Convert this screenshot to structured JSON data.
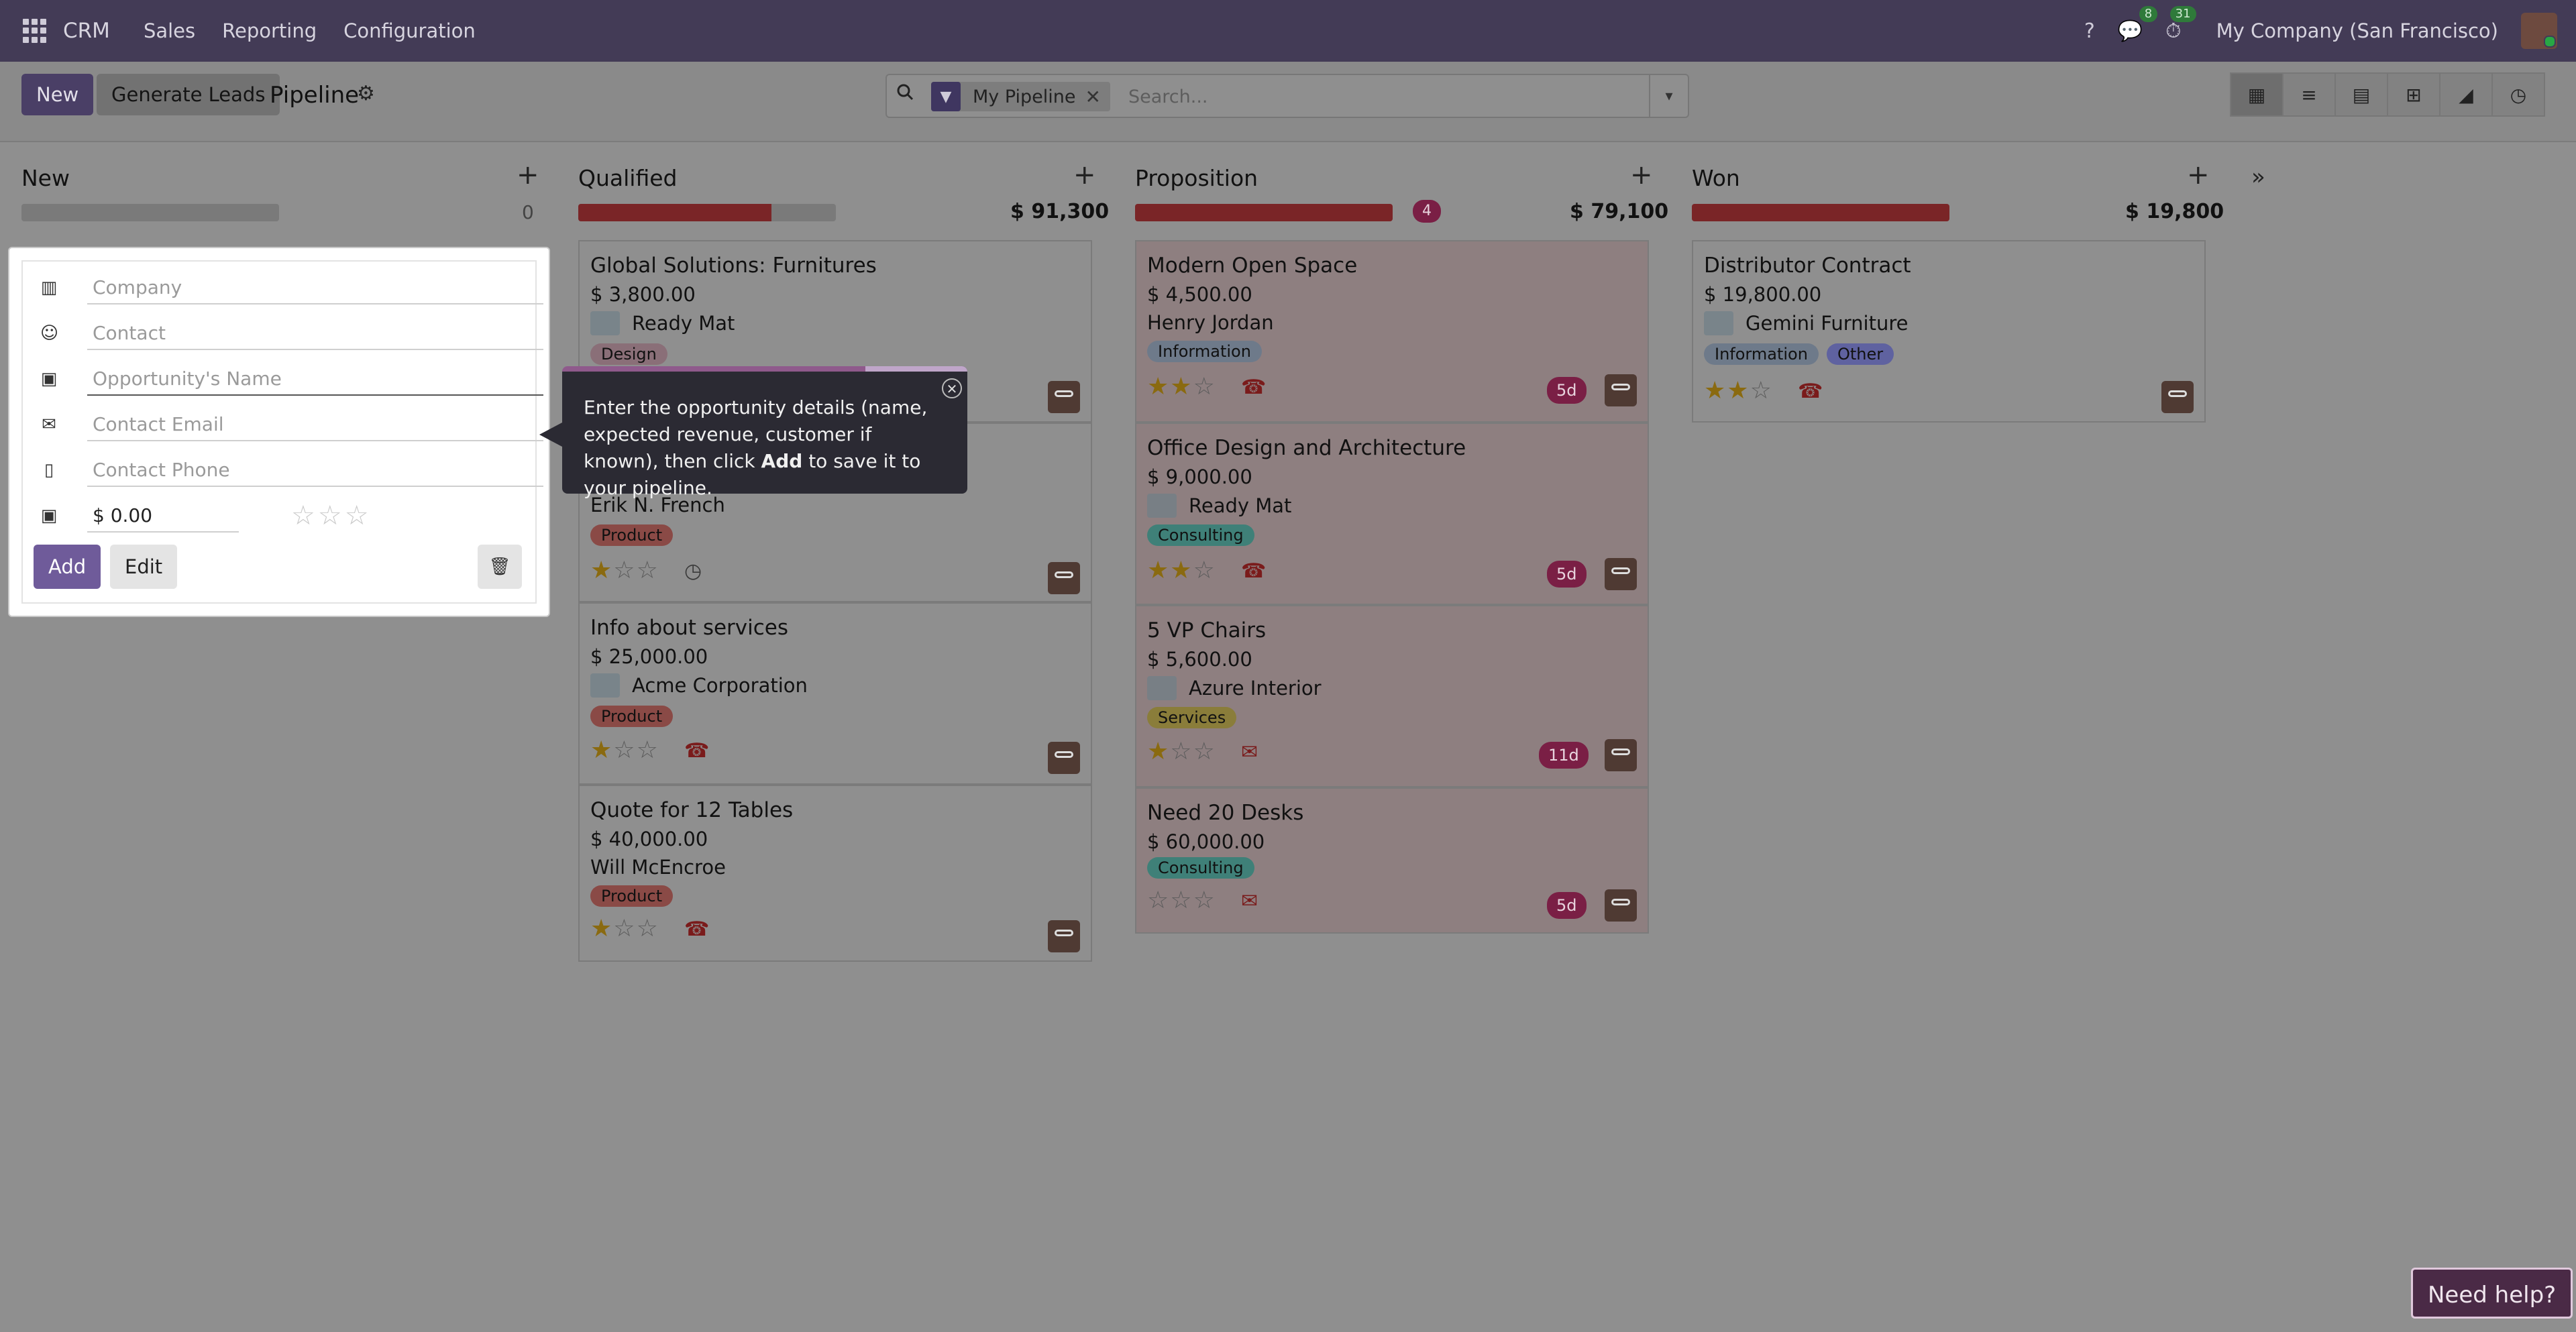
{
  "navbar": {
    "brand": "CRM",
    "menu": [
      "Sales",
      "Reporting",
      "Configuration"
    ],
    "messages_count": "8",
    "activities_count": "31",
    "company": "My Company (San Francisco)"
  },
  "control": {
    "new_label": "New",
    "generate_label": "Generate Leads",
    "breadcrumb": "Pipeline",
    "facet_label": "My Pipeline",
    "search_placeholder": "Search..."
  },
  "columns": [
    {
      "title": "New",
      "total": "0",
      "progress": 0
    },
    {
      "title": "Qualified",
      "total": "$ 91,300",
      "progress": 0.75
    },
    {
      "title": "Proposition",
      "total": "$ 79,100",
      "badge": "4",
      "progress": 1.0
    },
    {
      "title": "Won",
      "total": "$ 19,800",
      "progress": 1.0
    }
  ],
  "cards": {
    "q1": {
      "title": "Global Solutions: Furnitures",
      "amount": "$ 3,800.00",
      "partner": "Ready Mat",
      "tag": "Design"
    },
    "q2": {
      "partner": "Erik N. French",
      "tag": "Product"
    },
    "q3": {
      "title": "Info about services",
      "amount": "$ 25,000.00",
      "partner": "Acme Corporation",
      "tag": "Product"
    },
    "q4": {
      "title": "Quote for 12 Tables",
      "amount": "$ 40,000.00",
      "partner": "Will McEncroe",
      "tag": "Product"
    },
    "p1": {
      "title": "Modern Open Space",
      "amount": "$ 4,500.00",
      "partner": "Henry Jordan",
      "tag": "Information",
      "days": "5d"
    },
    "p2": {
      "title": "Office Design and Architecture",
      "amount": "$ 9,000.00",
      "partner": "Ready Mat",
      "tag": "Consulting",
      "days": "5d"
    },
    "p3": {
      "title": "5 VP Chairs",
      "amount": "$ 5,600.00",
      "partner": "Azure Interior",
      "tag": "Services",
      "days": "11d"
    },
    "p4": {
      "title": "Need 20 Desks",
      "amount": "$ 60,000.00",
      "tag": "Consulting",
      "days": "5d"
    },
    "w1": {
      "title": "Distributor Contract",
      "amount": "$ 19,800.00",
      "partner": "Gemini Furniture",
      "tag1": "Information",
      "tag2": "Other"
    }
  },
  "quick_create": {
    "company_placeholder": "Company",
    "contact_placeholder": "Contact",
    "opportunity_placeholder": "Opportunity's Name",
    "email_placeholder": "Contact Email",
    "phone_placeholder": "Contact Phone",
    "revenue_value": "$ 0.00",
    "add_label": "Add",
    "edit_label": "Edit"
  },
  "tooltip": {
    "text_before": "Enter the opportunity details (name, expected revenue, customer if known), then click ",
    "text_bold": "Add",
    "text_after": " to save it to your pipeline."
  },
  "help_label": "Need help?"
}
